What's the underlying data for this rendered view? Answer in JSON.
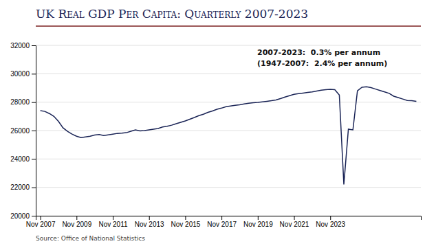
{
  "chart_data": {
    "type": "line",
    "title": "UK Real GDP Per Capita: Quarterly 2007-2023",
    "annotations": [
      "2007-2023:  0.3% per annum",
      "(1947-2007:  2.4% per annum)"
    ],
    "source": "Source: Office of National Statistics",
    "color": "#1a2456",
    "categories": [
      "Nov 2007",
      null,
      null,
      null,
      null,
      null,
      null,
      null,
      "Nov 2009",
      null,
      null,
      null,
      null,
      null,
      null,
      null,
      "Nov 2011",
      null,
      null,
      null,
      null,
      null,
      null,
      null,
      "Nov 2013",
      null,
      null,
      null,
      null,
      null,
      null,
      null,
      "Nov 2015",
      null,
      null,
      null,
      null,
      null,
      null,
      null,
      "Nov 2017",
      null,
      null,
      null,
      null,
      null,
      null,
      null,
      "Nov 2019",
      null,
      null,
      null,
      null,
      null,
      null,
      null,
      "Nov 2021",
      null,
      null,
      null,
      null,
      null,
      null,
      null,
      "Nov 2023",
      null,
      null,
      null,
      null,
      null,
      null,
      null,
      null,
      null,
      null,
      null,
      null,
      null,
      null,
      null,
      null,
      null,
      null,
      null
    ],
    "values": [
      27400,
      27350,
      27200,
      27000,
      26650,
      26200,
      25950,
      25750,
      25600,
      25500,
      25550,
      25600,
      25680,
      25720,
      25650,
      25700,
      25750,
      25800,
      25820,
      25850,
      25950,
      26050,
      25980,
      26000,
      26050,
      26100,
      26150,
      26250,
      26300,
      26380,
      26480,
      26580,
      26680,
      26800,
      26920,
      27050,
      27150,
      27280,
      27380,
      27500,
      27580,
      27680,
      27730,
      27780,
      27820,
      27870,
      27920,
      27960,
      27980,
      28020,
      28060,
      28100,
      28150,
      28250,
      28360,
      28460,
      28550,
      28600,
      28640,
      28680,
      28720,
      28780,
      28840,
      28880,
      28900,
      28880,
      28500,
      22200,
      26100,
      26050,
      28800,
      29050,
      29080,
      29020,
      28920,
      28820,
      28720,
      28620,
      28420,
      28320,
      28220,
      28120,
      28100,
      28060
    ],
    "ylim": [
      20000,
      32000
    ],
    "yticks": [
      20000,
      22000,
      24000,
      26000,
      28000,
      30000,
      32000
    ],
    "grid": true
  }
}
